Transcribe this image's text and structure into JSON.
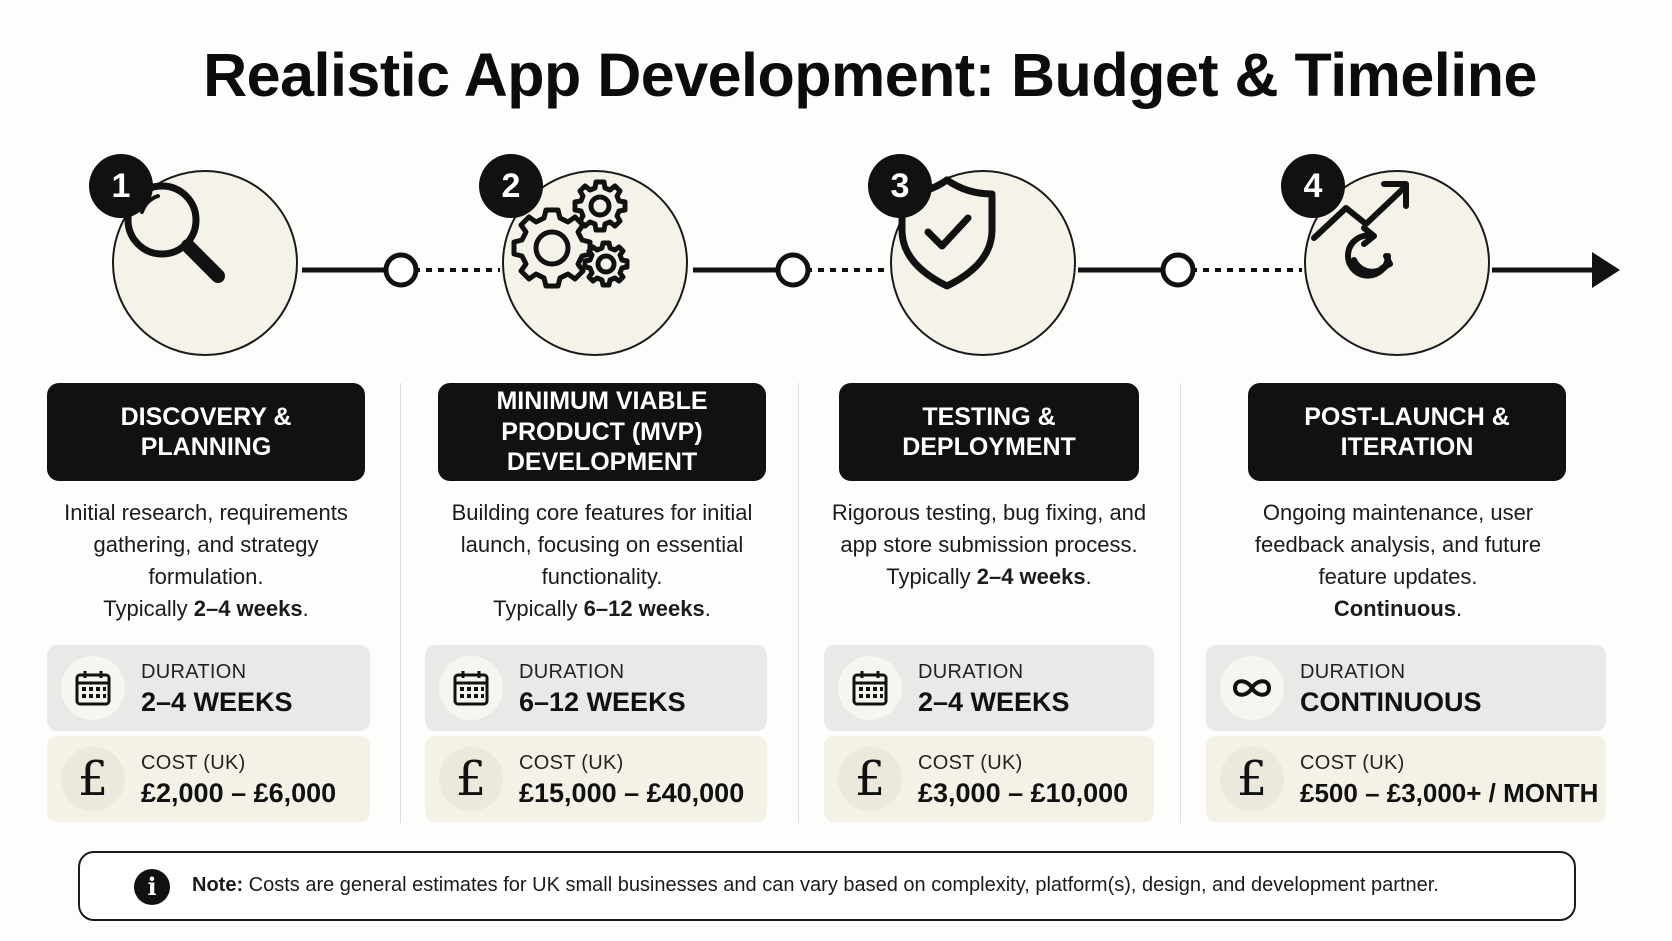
{
  "title": "Realistic App Development: Budget & Timeline",
  "stages": [
    {
      "number": "1",
      "icon": "magnifying-glass-icon",
      "heading": "DISCOVERY &\nPLANNING",
      "description": "Initial research, requirements gathering, and strategy formulation.",
      "typical_prefix": "Typically ",
      "typical_value": "2–4 weeks",
      "typical_suffix": ".",
      "duration_label": "DURATION",
      "duration_value": "2–4 WEEKS",
      "duration_icon": "calendar-icon",
      "cost_label": "COST (UK)",
      "cost_value": "£2,000 – £6,000",
      "cost_icon": "pound-icon"
    },
    {
      "number": "2",
      "icon": "gears-icon",
      "heading": "MINIMUM VIABLE\nPRODUCT (MVP)\nDEVELOPMENT",
      "description": "Building core features for initial launch, focusing on essential functionality.",
      "typical_prefix": "Typically ",
      "typical_value": "6–12 weeks",
      "typical_suffix": ".",
      "duration_label": "DURATION",
      "duration_value": "6–12 WEEKS",
      "duration_icon": "calendar-icon",
      "cost_label": "COST (UK)",
      "cost_value": "£15,000 – £40,000",
      "cost_icon": "pound-icon"
    },
    {
      "number": "3",
      "icon": "shield-check-icon",
      "heading": "TESTING &\nDEPLOYMENT",
      "description": "Rigorous testing, bug fixing, and app store submission process.",
      "typical_prefix": "Typically ",
      "typical_value": "2–4 weeks",
      "typical_suffix": ".",
      "duration_label": "DURATION",
      "duration_value": "2–4 WEEKS",
      "duration_icon": "calendar-icon",
      "cost_label": "COST (UK)",
      "cost_value": "£3,000 – £10,000",
      "cost_icon": "pound-icon"
    },
    {
      "number": "4",
      "icon": "growth-cycle-icon",
      "heading": "POST-LAUNCH &\nITERATION",
      "description": "Ongoing maintenance, user feedback analysis, and future feature updates.",
      "typical_prefix": "",
      "typical_value": "Continuous",
      "typical_suffix": ".",
      "duration_label": "DURATION",
      "duration_value": "CONTINUOUS",
      "duration_icon": "infinity-icon",
      "cost_label": "COST (UK)",
      "cost_value": "£500 – £3,000+ / MONTH",
      "cost_icon": "pound-icon"
    }
  ],
  "note": {
    "label": "Note:",
    "text": " Costs are general estimates for UK small businesses and can vary based on complexity, platform(s), design, and development partner."
  },
  "pound_glyph": "£",
  "info_glyph": "i"
}
